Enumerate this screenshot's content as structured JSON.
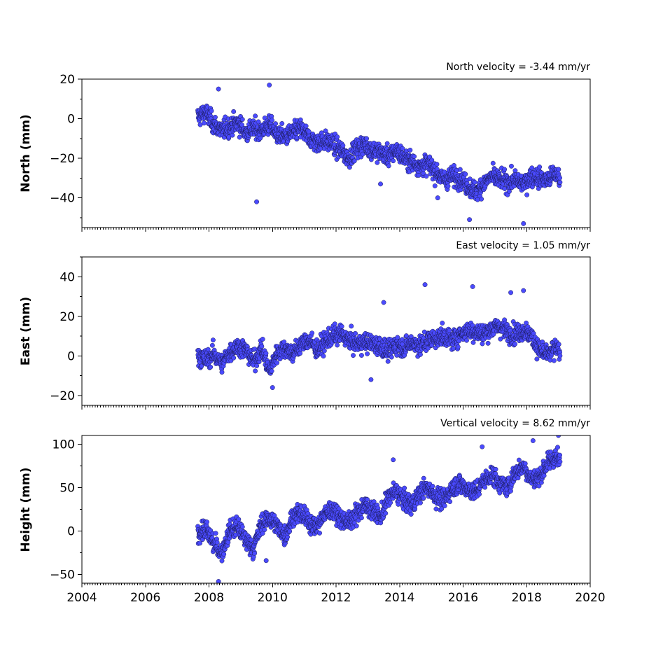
{
  "chart_data": [
    {
      "type": "scatter",
      "title": "North velocity = -3.44 mm/yr",
      "ylabel": "North (mm)",
      "xlim": [
        2004,
        2020
      ],
      "ylim": [
        -55,
        20
      ],
      "yticks": [
        20,
        0,
        -20,
        -40
      ],
      "yticklabels": [
        "20",
        "0",
        "−20",
        "−40"
      ],
      "xticklabels_shown": false,
      "grid": false,
      "color": "#4a4aff",
      "velocity_mm_per_yr": -3.44,
      "outliers": [
        [
          2009.5,
          -42
        ],
        [
          2008.3,
          15
        ],
        [
          2009.9,
          17
        ],
        [
          2016.2,
          -51
        ],
        [
          2017.9,
          -53
        ],
        [
          2013.4,
          -33
        ],
        [
          2015.2,
          -40
        ]
      ],
      "series": [
        {
          "x": [
            2007.65,
            2007.9,
            2008.15,
            2008.4,
            2008.65,
            2008.9,
            2009.15,
            2009.4,
            2009.65,
            2009.9,
            2010.15,
            2010.4,
            2010.65,
            2010.9,
            2011.15,
            2011.4,
            2011.65,
            2011.9,
            2012.15,
            2012.4,
            2012.65,
            2012.9,
            2013.15,
            2013.4,
            2013.65,
            2013.9,
            2014.15,
            2014.4,
            2014.65,
            2014.9,
            2015.15,
            2015.4,
            2015.65,
            2015.9,
            2016.15,
            2016.4,
            2016.65,
            2016.9,
            2017.15,
            2017.4,
            2017.65,
            2017.9,
            2018.15,
            2018.4,
            2018.65,
            2018.9,
            2019.05
          ],
          "y": [
            1,
            3,
            -3,
            -6,
            -4,
            -2,
            -7,
            -5,
            -6,
            -3,
            -8,
            -9,
            -7,
            -5,
            -10,
            -12,
            -11,
            -13,
            -16,
            -20,
            -15,
            -13,
            -16,
            -17,
            -19,
            -16,
            -20,
            -22,
            -24,
            -23,
            -27,
            -31,
            -29,
            -30,
            -34,
            -37,
            -33,
            -29,
            -31,
            -32,
            -31,
            -33,
            -29,
            -30,
            -31,
            -28,
            -30
          ]
        }
      ]
    },
    {
      "type": "scatter",
      "title": "East velocity = 1.05 mm/yr",
      "ylabel": "East (mm)",
      "xlim": [
        2004,
        2020
      ],
      "ylim": [
        -25,
        50
      ],
      "yticks": [
        40,
        20,
        0,
        -20
      ],
      "yticklabels": [
        "40",
        "20",
        "0",
        "−20"
      ],
      "xticklabels_shown": false,
      "grid": false,
      "color": "#4a4aff",
      "velocity_mm_per_yr": 1.05,
      "outliers": [
        [
          2014.8,
          36
        ],
        [
          2016.3,
          35
        ],
        [
          2017.9,
          33
        ],
        [
          2013.5,
          27
        ],
        [
          2010.0,
          -16
        ],
        [
          2013.1,
          -12
        ],
        [
          2017.5,
          32
        ]
      ],
      "series": [
        {
          "x": [
            2007.65,
            2007.9,
            2008.15,
            2008.4,
            2008.65,
            2008.9,
            2009.15,
            2009.4,
            2009.65,
            2009.9,
            2010.15,
            2010.4,
            2010.65,
            2010.9,
            2011.15,
            2011.4,
            2011.65,
            2011.9,
            2012.15,
            2012.4,
            2012.65,
            2012.9,
            2013.15,
            2013.4,
            2013.65,
            2013.9,
            2014.15,
            2014.4,
            2014.65,
            2014.9,
            2015.15,
            2015.4,
            2015.65,
            2015.9,
            2016.15,
            2016.4,
            2016.65,
            2016.9,
            2017.15,
            2017.4,
            2017.65,
            2017.9,
            2018.15,
            2018.4,
            2018.65,
            2018.9,
            2019.05
          ],
          "y": [
            0,
            -2,
            1,
            -4,
            2,
            5,
            3,
            -3,
            4,
            -8,
            2,
            4,
            1,
            6,
            8,
            3,
            7,
            10,
            11,
            8,
            6,
            7,
            6,
            5,
            2,
            6,
            4,
            7,
            5,
            8,
            9,
            10,
            8,
            11,
            13,
            12,
            11,
            14,
            15,
            12,
            11,
            13,
            10,
            3,
            0,
            4,
            2
          ]
        }
      ]
    },
    {
      "type": "scatter",
      "title": "Vertical velocity = 8.62 mm/yr",
      "ylabel": "Height (mm)",
      "xlim": [
        2004,
        2020
      ],
      "ylim": [
        -60,
        110
      ],
      "yticks": [
        100,
        50,
        0,
        -50
      ],
      "yticklabels": [
        "100",
        "50",
        "0",
        "−50"
      ],
      "xticks": [
        2004,
        2006,
        2008,
        2010,
        2012,
        2014,
        2016,
        2018,
        2020
      ],
      "xticklabels": [
        "2004",
        "2006",
        "2008",
        "2010",
        "2012",
        "2014",
        "2016",
        "2018",
        "2020"
      ],
      "xticklabels_shown": true,
      "grid": false,
      "color": "#4a4aff",
      "velocity_mm_per_yr": 8.62,
      "outliers": [
        [
          2008.3,
          -58
        ],
        [
          2016.6,
          97
        ],
        [
          2018.2,
          104
        ],
        [
          2019.0,
          110
        ],
        [
          2013.8,
          82
        ],
        [
          2009.8,
          -34
        ]
      ],
      "series": [
        {
          "x": [
            2007.65,
            2007.9,
            2008.15,
            2008.4,
            2008.65,
            2008.9,
            2009.15,
            2009.4,
            2009.65,
            2009.9,
            2010.15,
            2010.4,
            2010.65,
            2010.9,
            2011.15,
            2011.4,
            2011.65,
            2011.9,
            2012.15,
            2012.4,
            2012.65,
            2012.9,
            2013.15,
            2013.4,
            2013.65,
            2013.9,
            2014.15,
            2014.4,
            2014.65,
            2014.9,
            2015.15,
            2015.4,
            2015.65,
            2015.9,
            2016.15,
            2016.4,
            2016.65,
            2016.9,
            2017.15,
            2017.4,
            2017.65,
            2017.9,
            2018.15,
            2018.4,
            2018.65,
            2018.9,
            2019.05
          ],
          "y": [
            -3,
            2,
            -15,
            -25,
            0,
            5,
            -10,
            -20,
            8,
            15,
            5,
            -5,
            18,
            20,
            10,
            5,
            20,
            25,
            15,
            10,
            20,
            30,
            25,
            15,
            40,
            45,
            35,
            30,
            45,
            50,
            40,
            35,
            50,
            55,
            48,
            45,
            58,
            65,
            55,
            50,
            68,
            75,
            60,
            62,
            78,
            85,
            80
          ]
        }
      ]
    }
  ]
}
